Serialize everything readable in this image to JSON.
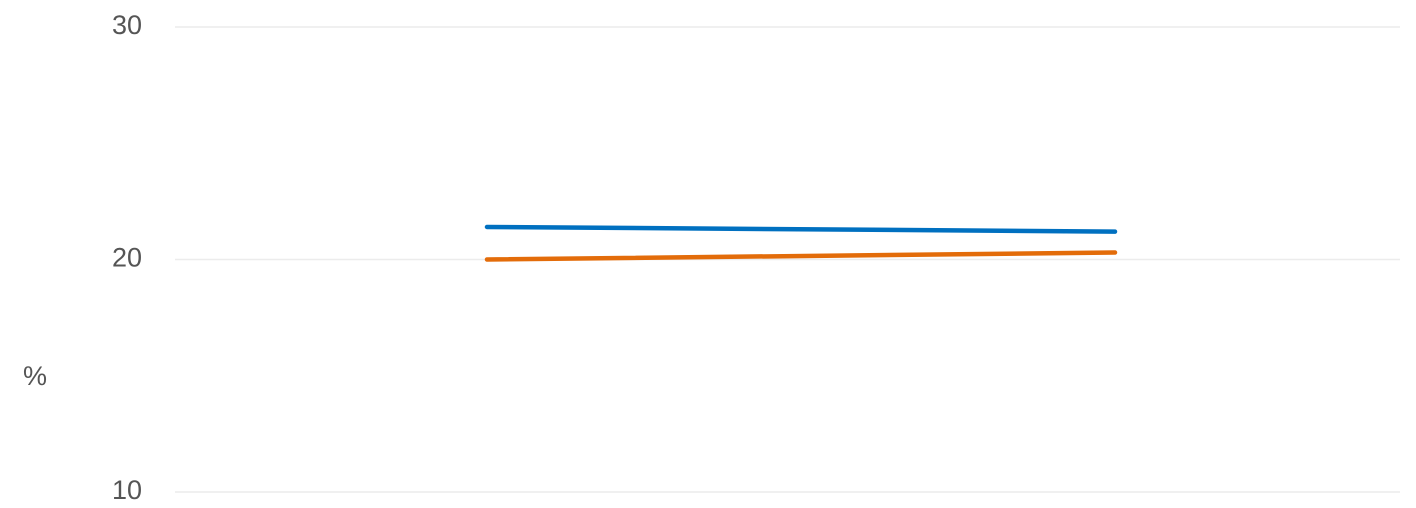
{
  "chart_data": {
    "type": "line",
    "y_label": "%",
    "categories": [
      null,
      null
    ],
    "series": [
      {
        "color": "#0070c0",
        "values": [
          21.4,
          21.2
        ]
      },
      {
        "color": "#e36c0a",
        "values": [
          20.0,
          20.3
        ]
      }
    ],
    "ylim": [
      10,
      30
    ],
    "yticks": [
      10,
      20,
      30
    ],
    "grid": true
  }
}
